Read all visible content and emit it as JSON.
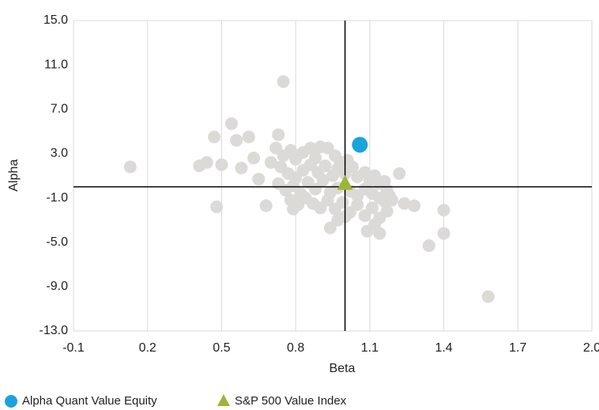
{
  "chart_data": {
    "type": "scatter",
    "x_label": "Beta",
    "y_label": "Alpha",
    "xlim": [
      -0.1,
      2.0
    ],
    "xticks": [
      -0.1,
      0.2,
      0.5,
      0.8,
      1.1,
      1.4,
      1.7,
      {
        "value": 2.0,
        "label": "2.0"
      }
    ],
    "ylim": [
      -13,
      15
    ],
    "yticks": [
      {
        "value": 15,
        "label": "15.0"
      },
      {
        "value": 11,
        "label": "11.0"
      },
      {
        "value": 7,
        "label": "7.0"
      },
      {
        "value": 3,
        "label": "3.0"
      },
      {
        "value": -1,
        "label": "-1.0"
      },
      {
        "value": -5,
        "label": "-5.0"
      },
      {
        "value": -9,
        "label": "-9.0"
      },
      {
        "value": -13,
        "label": "-13.0"
      }
    ],
    "grid": "x",
    "crosshair": {
      "x": 1.0,
      "y": 0
    },
    "series": [
      {
        "color": "#dcdad7",
        "marker": "circle",
        "x": [
          0.13,
          0.75,
          0.54,
          0.47,
          0.48,
          0.41,
          0.44,
          0.5,
          0.56,
          0.61,
          0.63,
          0.58,
          0.65,
          0.68,
          0.73,
          1.22,
          1.28,
          1.4,
          1.4,
          1.34,
          1.58,
          0.94,
          1.14,
          1.09,
          1.24,
          1.16,
          0.72,
          0.75,
          0.78,
          0.8,
          0.83,
          0.86,
          0.9,
          0.93,
          0.96,
          0.98,
          0.74,
          0.77,
          0.8,
          0.83,
          0.86,
          0.89,
          0.92,
          0.95,
          0.97,
          1.0,
          1.03,
          1.05,
          1.08,
          1.1,
          1.12,
          1.14,
          1.16,
          0.73,
          0.76,
          0.79,
          0.82,
          0.85,
          0.88,
          0.91,
          0.94,
          0.97,
          1.02,
          1.05,
          1.08,
          1.11,
          1.14,
          1.17,
          0.78,
          0.81,
          0.84,
          0.87,
          0.9,
          0.93,
          0.96,
          0.99,
          1.02,
          1.05,
          1.08,
          1.11,
          1.14,
          1.17,
          1.19,
          0.97,
          1.0,
          1.12,
          0.79,
          0.88,
          1.01,
          0.7,
          1.18
        ],
        "values": [
          1.8,
          9.5,
          5.7,
          4.5,
          -1.8,
          1.9,
          2.2,
          2.0,
          4.2,
          4.5,
          2.6,
          1.7,
          0.7,
          -1.7,
          4.7,
          1.2,
          -1.7,
          -2.1,
          -4.2,
          -5.3,
          -9.9,
          -3.7,
          -4.2,
          -4.0,
          -1.5,
          -1.3,
          3.5,
          2.8,
          3.3,
          2.5,
          3.1,
          3.5,
          3.6,
          3.5,
          2.8,
          2.2,
          1.8,
          1.2,
          0.8,
          1.5,
          2.0,
          1.3,
          1.9,
          1.0,
          1.6,
          1.2,
          1.8,
          0.9,
          1.3,
          0.6,
          1.0,
          0.3,
          0.5,
          0.3,
          -0.3,
          0.1,
          -0.6,
          0.4,
          -0.2,
          0.6,
          -0.5,
          -0.1,
          -0.4,
          -0.8,
          -0.2,
          -0.6,
          -1.0,
          -0.3,
          -1.2,
          -1.6,
          -1.0,
          -1.5,
          -1.9,
          -1.2,
          -2.0,
          -1.4,
          -2.3,
          -1.6,
          -2.6,
          -1.9,
          -2.8,
          -2.2,
          -1.2,
          -3.0,
          -2.7,
          -3.4,
          -2.0,
          2.6,
          2.4,
          2.2,
          -0.8
        ]
      },
      {
        "name": "Alpha Quant Value Equity",
        "color": "#1aa3dc",
        "marker": "circle",
        "x": [
          1.06
        ],
        "values": [
          3.8
        ]
      },
      {
        "name": "S&P 500 Value Index",
        "color": "#9cb53a",
        "marker": "triangle",
        "x": [
          1.0
        ],
        "values": [
          0.3
        ]
      }
    ]
  }
}
